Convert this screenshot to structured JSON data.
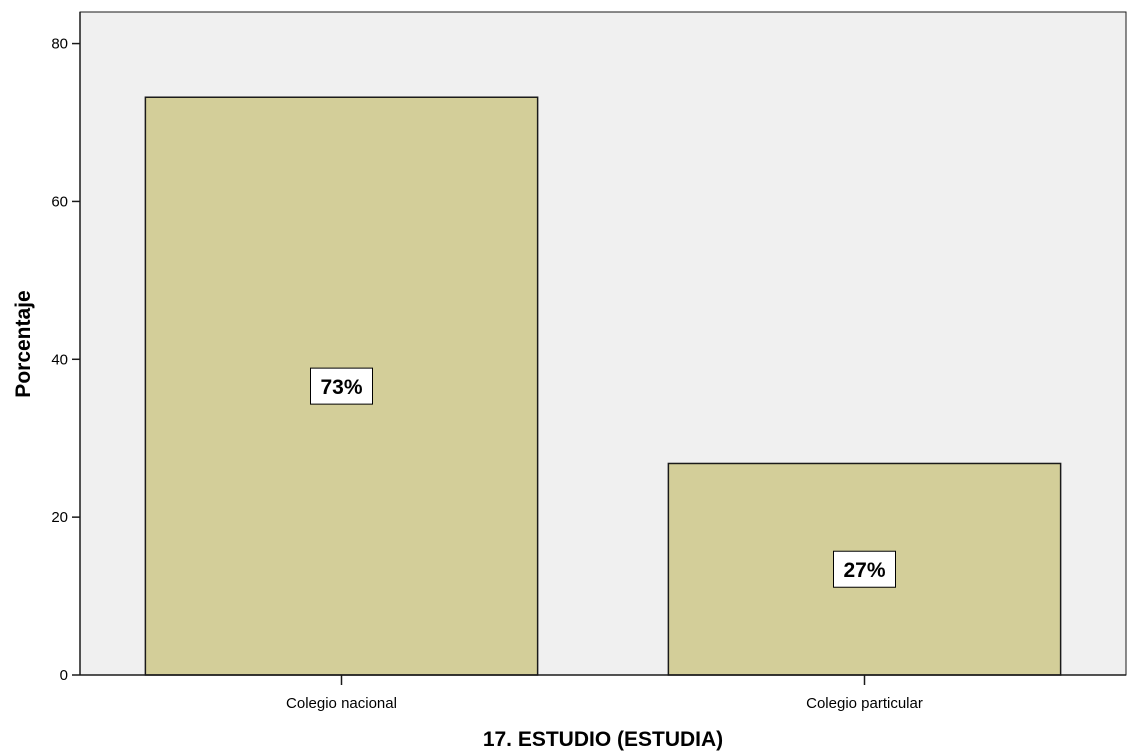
{
  "chart_data": {
    "type": "bar",
    "categories": [
      "Colegio nacional",
      "Colegio particular"
    ],
    "values": [
      73.2,
      26.8
    ],
    "data_labels": [
      "73%",
      "27%"
    ],
    "title": "",
    "xlabel": "17. ESTUDIO (ESTUDIA)",
    "ylabel": "Porcentaje",
    "ylim": [
      0,
      84
    ],
    "yticks": [
      0,
      20,
      40,
      60,
      80
    ],
    "ytick_labels": [
      "0",
      "20",
      "40",
      "60",
      "80"
    ],
    "grid": false,
    "legend": "none"
  },
  "colors": {
    "plot_background": "#f0f0f0",
    "bar_fill": "#d3ce99",
    "bar_stroke": "#1a1a1a",
    "label_box_fill": "#ffffff"
  }
}
